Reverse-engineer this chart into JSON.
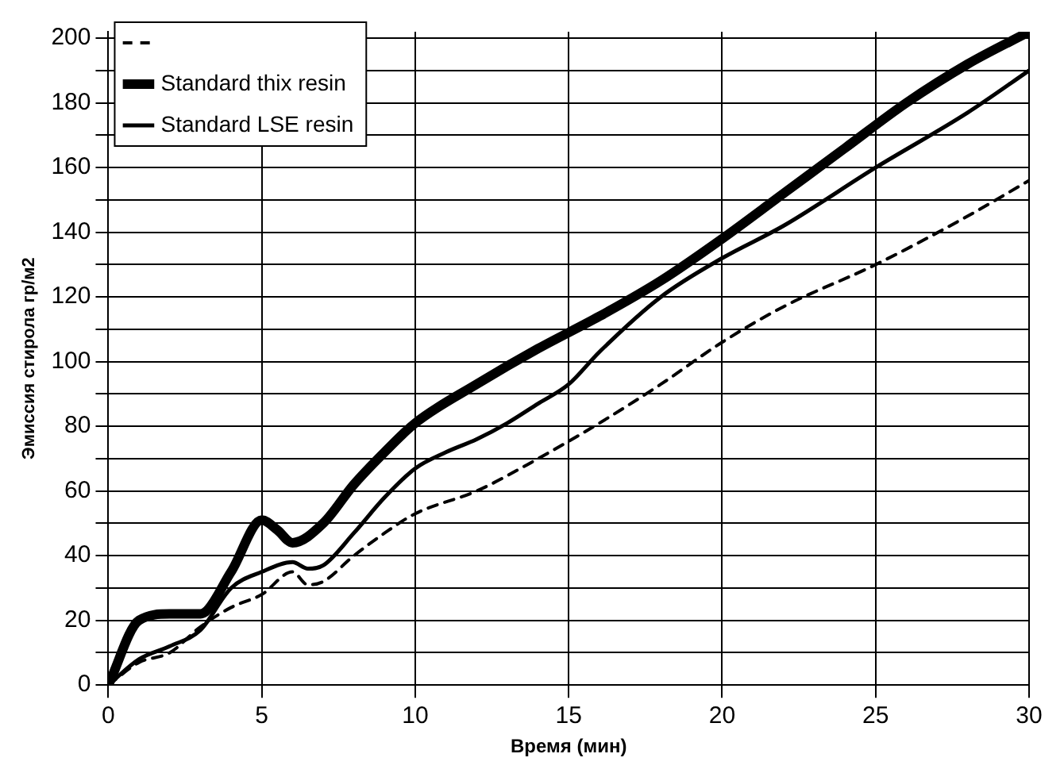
{
  "chart_data": {
    "type": "line",
    "xlabel": "Время (мин)",
    "ylabel": "Эмиссия стирола гр/м2",
    "xlim": [
      0,
      30
    ],
    "xticks": [
      0,
      5,
      10,
      15,
      20,
      25,
      30
    ],
    "ylim": [
      0,
      202
    ],
    "yticks": [
      0,
      {
        "value": 10,
        "label": null
      },
      20,
      {
        "value": 30,
        "label": null
      },
      40,
      {
        "value": 50,
        "label": null
      },
      60,
      {
        "value": 70,
        "label": null
      },
      80,
      {
        "value": 90,
        "label": null
      },
      100,
      {
        "value": 110,
        "label": null
      },
      120,
      {
        "value": 130,
        "label": null
      },
      140,
      {
        "value": 150,
        "label": null
      },
      160,
      {
        "value": 170,
        "label": null
      },
      180,
      {
        "value": 190,
        "label": null
      },
      200
    ],
    "grid": true,
    "legend": "top left",
    "marker": "none",
    "series": [
      {
        "color": "#000000",
        "line_style": "dashed",
        "x": [
          0,
          1,
          2,
          3,
          4,
          5,
          6,
          6.5,
          7,
          8,
          9,
          10,
          12,
          14,
          16,
          18,
          20,
          22,
          25,
          28,
          30
        ],
        "values": [
          0,
          7,
          10,
          18,
          24,
          28,
          35,
          31,
          32,
          40,
          47,
          53,
          60,
          70,
          81,
          93,
          106,
          117,
          130,
          145,
          156
        ]
      },
      {
        "name": "Standard thix resin",
        "color": "#000000",
        "line_style": "solid",
        "x": [
          0,
          1,
          2,
          3,
          4,
          5,
          5.5,
          6,
          7,
          8,
          9,
          10,
          12,
          14,
          16,
          18,
          20,
          22,
          24,
          26,
          28,
          30
        ],
        "values": [
          0,
          20,
          22,
          22,
          35,
          51,
          48,
          44,
          50,
          62,
          72,
          81,
          93,
          104,
          114,
          125,
          138,
          152,
          166,
          180,
          192,
          202
        ]
      },
      {
        "name": "Standard LSE resin",
        "color": "#000000",
        "line_style": "solid",
        "x": [
          0,
          1,
          2,
          3,
          4,
          5,
          6,
          6.5,
          7,
          8,
          9,
          10,
          11,
          12,
          13,
          14,
          15,
          16,
          18,
          20,
          22,
          25,
          28,
          30
        ],
        "values": [
          0,
          8,
          12,
          17,
          30,
          35,
          38,
          36,
          37,
          47,
          58,
          67,
          72,
          76,
          81,
          87,
          93,
          103,
          120,
          132,
          142,
          160,
          177,
          190
        ]
      }
    ]
  }
}
